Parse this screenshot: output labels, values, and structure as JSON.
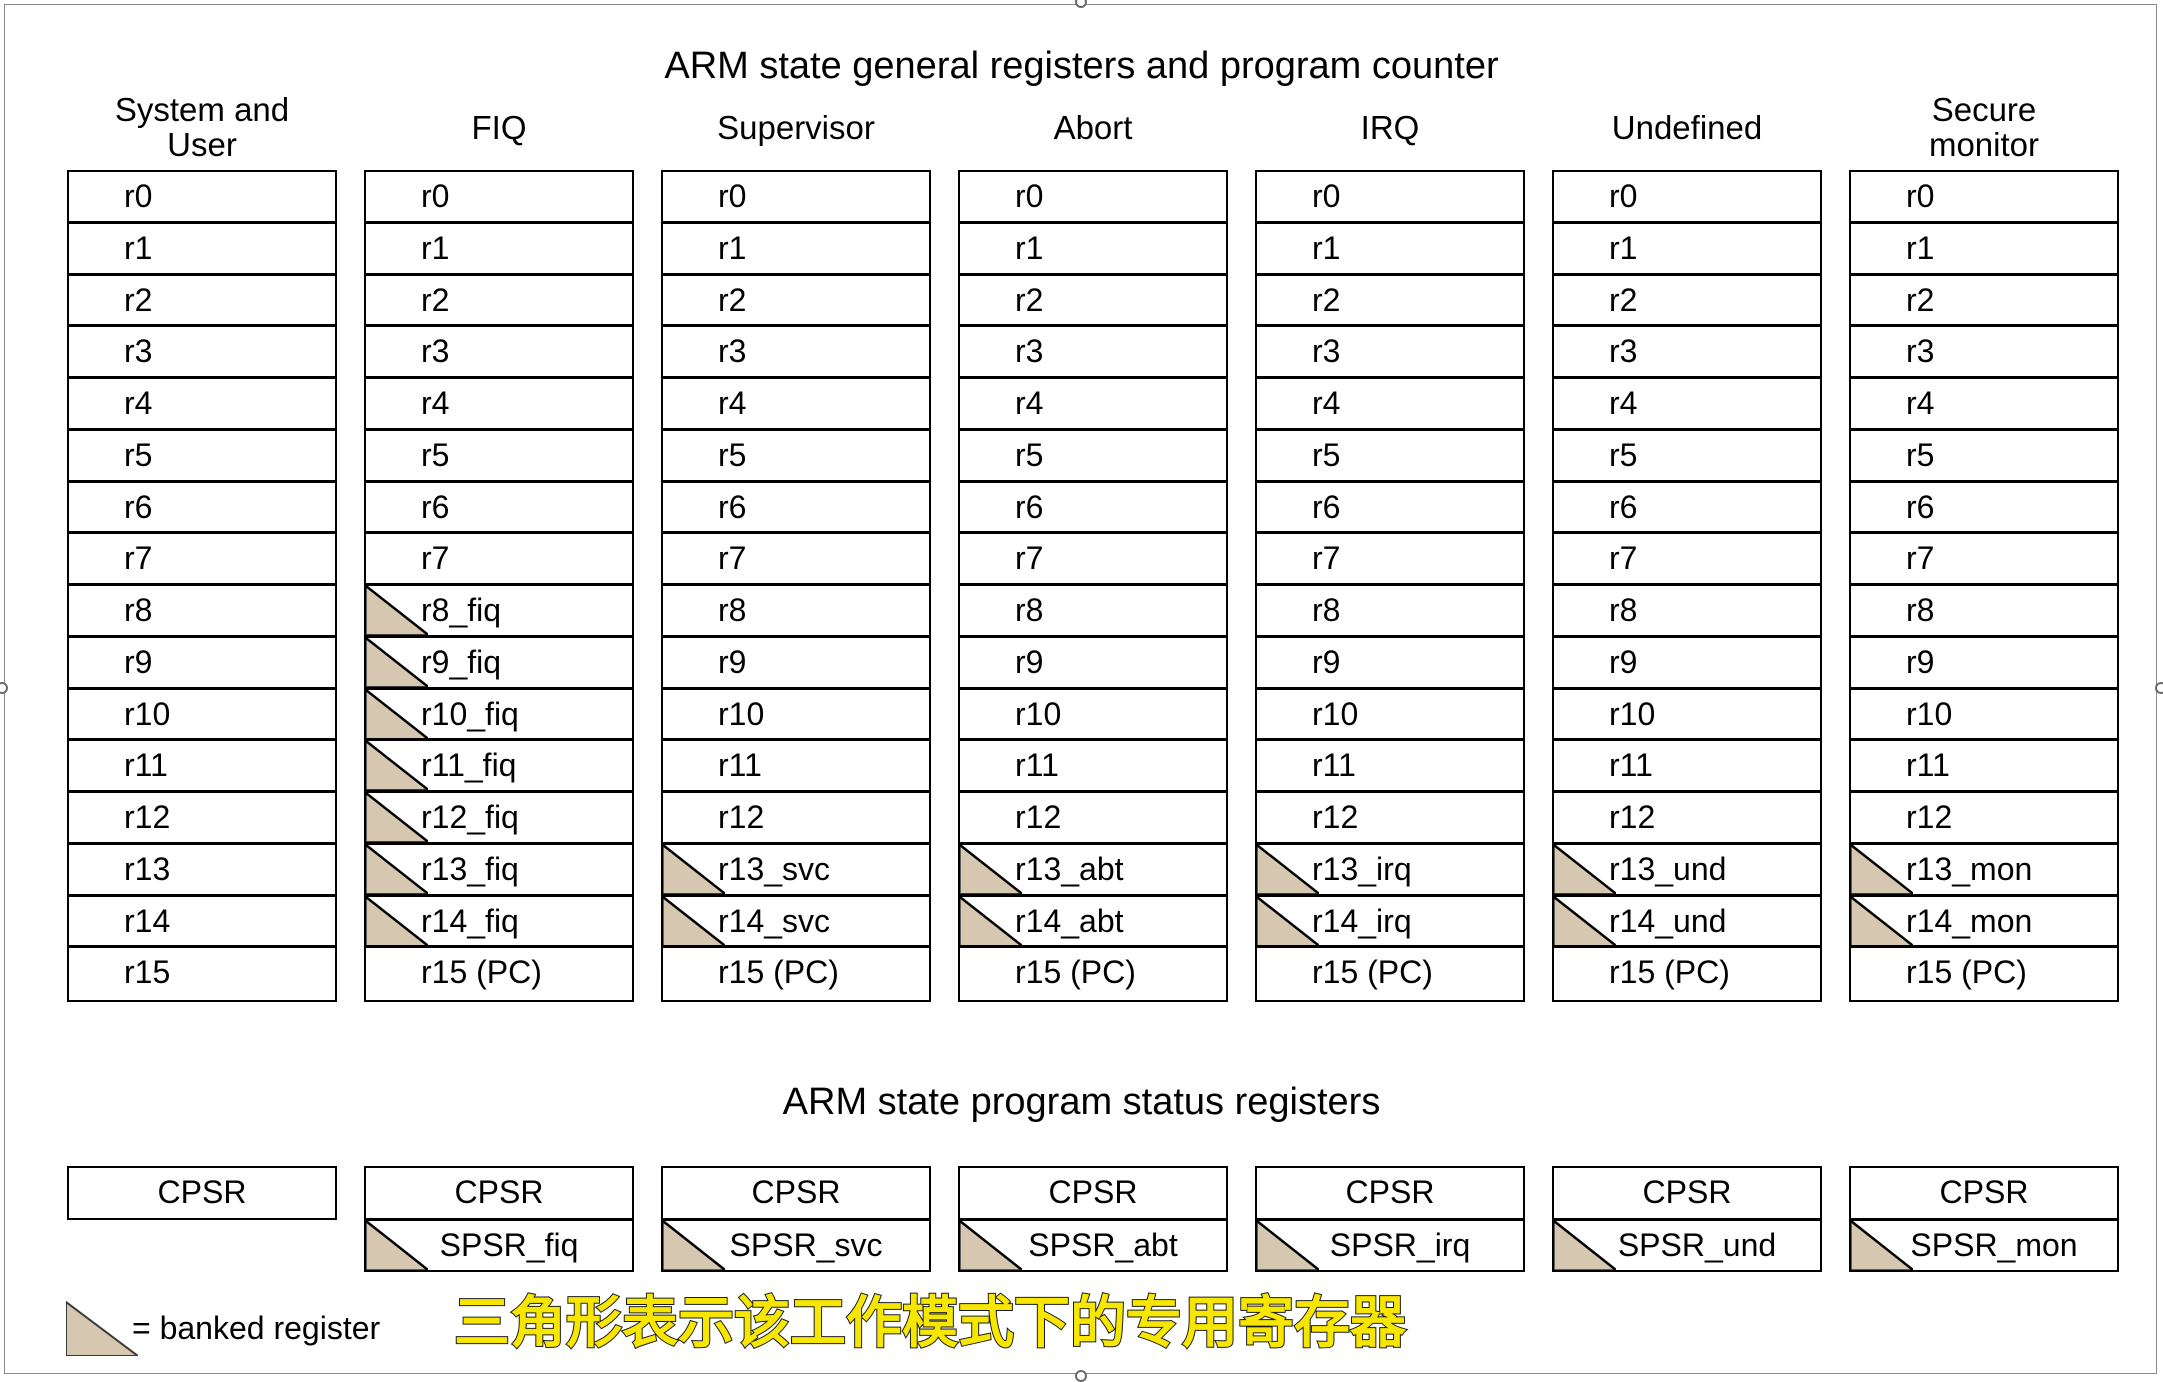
{
  "titles": {
    "general": "ARM state general registers and program counter",
    "status": "ARM state program status registers"
  },
  "modes": [
    {
      "header": "System and\nUser",
      "registers": [
        {
          "label": "r0",
          "banked": false
        },
        {
          "label": "r1",
          "banked": false
        },
        {
          "label": "r2",
          "banked": false
        },
        {
          "label": "r3",
          "banked": false
        },
        {
          "label": "r4",
          "banked": false
        },
        {
          "label": "r5",
          "banked": false
        },
        {
          "label": "r6",
          "banked": false
        },
        {
          "label": "r7",
          "banked": false
        },
        {
          "label": "r8",
          "banked": false
        },
        {
          "label": "r9",
          "banked": false
        },
        {
          "label": "r10",
          "banked": false
        },
        {
          "label": "r11",
          "banked": false
        },
        {
          "label": "r12",
          "banked": false
        },
        {
          "label": "r13",
          "banked": false
        },
        {
          "label": "r14",
          "banked": false
        },
        {
          "label": "r15",
          "banked": false
        }
      ],
      "psr": [
        {
          "label": "CPSR",
          "banked": false
        }
      ]
    },
    {
      "header": "FIQ",
      "registers": [
        {
          "label": "r0",
          "banked": false
        },
        {
          "label": "r1",
          "banked": false
        },
        {
          "label": "r2",
          "banked": false
        },
        {
          "label": "r3",
          "banked": false
        },
        {
          "label": "r4",
          "banked": false
        },
        {
          "label": "r5",
          "banked": false
        },
        {
          "label": "r6",
          "banked": false
        },
        {
          "label": "r7",
          "banked": false
        },
        {
          "label": "r8_fiq",
          "banked": true
        },
        {
          "label": "r9_fiq",
          "banked": true
        },
        {
          "label": "r10_fiq",
          "banked": true
        },
        {
          "label": "r11_fiq",
          "banked": true
        },
        {
          "label": "r12_fiq",
          "banked": true
        },
        {
          "label": "r13_fiq",
          "banked": true
        },
        {
          "label": "r14_fiq",
          "banked": true
        },
        {
          "label": "r15 (PC)",
          "banked": false
        }
      ],
      "psr": [
        {
          "label": "CPSR",
          "banked": false
        },
        {
          "label": "SPSR_fiq",
          "banked": true
        }
      ]
    },
    {
      "header": "Supervisor",
      "registers": [
        {
          "label": "r0",
          "banked": false
        },
        {
          "label": "r1",
          "banked": false
        },
        {
          "label": "r2",
          "banked": false
        },
        {
          "label": "r3",
          "banked": false
        },
        {
          "label": "r4",
          "banked": false
        },
        {
          "label": "r5",
          "banked": false
        },
        {
          "label": "r6",
          "banked": false
        },
        {
          "label": "r7",
          "banked": false
        },
        {
          "label": "r8",
          "banked": false
        },
        {
          "label": "r9",
          "banked": false
        },
        {
          "label": "r10",
          "banked": false
        },
        {
          "label": "r11",
          "banked": false
        },
        {
          "label": "r12",
          "banked": false
        },
        {
          "label": "r13_svc",
          "banked": true
        },
        {
          "label": "r14_svc",
          "banked": true
        },
        {
          "label": "r15 (PC)",
          "banked": false
        }
      ],
      "psr": [
        {
          "label": "CPSR",
          "banked": false
        },
        {
          "label": "SPSR_svc",
          "banked": true
        }
      ]
    },
    {
      "header": "Abort",
      "registers": [
        {
          "label": "r0",
          "banked": false
        },
        {
          "label": "r1",
          "banked": false
        },
        {
          "label": "r2",
          "banked": false
        },
        {
          "label": "r3",
          "banked": false
        },
        {
          "label": "r4",
          "banked": false
        },
        {
          "label": "r5",
          "banked": false
        },
        {
          "label": "r6",
          "banked": false
        },
        {
          "label": "r7",
          "banked": false
        },
        {
          "label": "r8",
          "banked": false
        },
        {
          "label": "r9",
          "banked": false
        },
        {
          "label": "r10",
          "banked": false
        },
        {
          "label": "r11",
          "banked": false
        },
        {
          "label": "r12",
          "banked": false
        },
        {
          "label": "r13_abt",
          "banked": true
        },
        {
          "label": "r14_abt",
          "banked": true
        },
        {
          "label": "r15 (PC)",
          "banked": false
        }
      ],
      "psr": [
        {
          "label": "CPSR",
          "banked": false
        },
        {
          "label": "SPSR_abt",
          "banked": true
        }
      ]
    },
    {
      "header": "IRQ",
      "registers": [
        {
          "label": "r0",
          "banked": false
        },
        {
          "label": "r1",
          "banked": false
        },
        {
          "label": "r2",
          "banked": false
        },
        {
          "label": "r3",
          "banked": false
        },
        {
          "label": "r4",
          "banked": false
        },
        {
          "label": "r5",
          "banked": false
        },
        {
          "label": "r6",
          "banked": false
        },
        {
          "label": "r7",
          "banked": false
        },
        {
          "label": "r8",
          "banked": false
        },
        {
          "label": "r9",
          "banked": false
        },
        {
          "label": "r10",
          "banked": false
        },
        {
          "label": "r11",
          "banked": false
        },
        {
          "label": "r12",
          "banked": false
        },
        {
          "label": "r13_irq",
          "banked": true
        },
        {
          "label": "r14_irq",
          "banked": true
        },
        {
          "label": "r15 (PC)",
          "banked": false
        }
      ],
      "psr": [
        {
          "label": "CPSR",
          "banked": false
        },
        {
          "label": "SPSR_irq",
          "banked": true
        }
      ]
    },
    {
      "header": "Undefined",
      "registers": [
        {
          "label": "r0",
          "banked": false
        },
        {
          "label": "r1",
          "banked": false
        },
        {
          "label": "r2",
          "banked": false
        },
        {
          "label": "r3",
          "banked": false
        },
        {
          "label": "r4",
          "banked": false
        },
        {
          "label": "r5",
          "banked": false
        },
        {
          "label": "r6",
          "banked": false
        },
        {
          "label": "r7",
          "banked": false
        },
        {
          "label": "r8",
          "banked": false
        },
        {
          "label": "r9",
          "banked": false
        },
        {
          "label": "r10",
          "banked": false
        },
        {
          "label": "r11",
          "banked": false
        },
        {
          "label": "r12",
          "banked": false
        },
        {
          "label": "r13_und",
          "banked": true
        },
        {
          "label": "r14_und",
          "banked": true
        },
        {
          "label": "r15 (PC)",
          "banked": false
        }
      ],
      "psr": [
        {
          "label": "CPSR",
          "banked": false
        },
        {
          "label": "SPSR_und",
          "banked": true
        }
      ]
    },
    {
      "header": "Secure\nmonitor",
      "registers": [
        {
          "label": "r0",
          "banked": false
        },
        {
          "label": "r1",
          "banked": false
        },
        {
          "label": "r2",
          "banked": false
        },
        {
          "label": "r3",
          "banked": false
        },
        {
          "label": "r4",
          "banked": false
        },
        {
          "label": "r5",
          "banked": false
        },
        {
          "label": "r6",
          "banked": false
        },
        {
          "label": "r7",
          "banked": false
        },
        {
          "label": "r8",
          "banked": false
        },
        {
          "label": "r9",
          "banked": false
        },
        {
          "label": "r10",
          "banked": false
        },
        {
          "label": "r11",
          "banked": false
        },
        {
          "label": "r12",
          "banked": false
        },
        {
          "label": "r13_mon",
          "banked": true
        },
        {
          "label": "r14_mon",
          "banked": true
        },
        {
          "label": "r15 (PC)",
          "banked": false
        }
      ],
      "psr": [
        {
          "label": "CPSR",
          "banked": false
        },
        {
          "label": "SPSR_mon",
          "banked": true
        }
      ]
    }
  ],
  "legend": {
    "text": "= banked register"
  },
  "caption": "三角形表示该工作模式下的专用寄存器",
  "colors": {
    "banked_fill": "#d6c7b0",
    "caption": "#f7e600",
    "frame": "#8a8a8a"
  },
  "icons": {
    "banked": "banked-triangle-icon"
  }
}
